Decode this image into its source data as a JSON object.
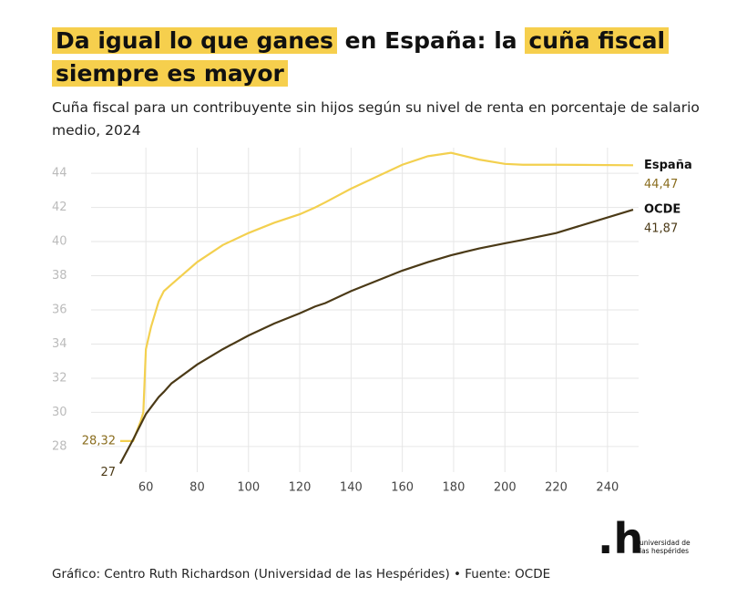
{
  "chart_data": {
    "type": "line",
    "title": [
      "Da igual lo que ganes",
      "en España: la",
      "cuña fiscal",
      "siempre es mayor"
    ],
    "subtitle": "Cuña fiscal para un contribuyente sin hijos según su nivel de renta en porcentaje de salario medio, 2024",
    "source": "Gráfico: Centro Ruth Richardson (Universidad de las Hespérides) • Fuente: OCDE",
    "logo": {
      "mark": ".h",
      "text": "universidad de las hespérides"
    },
    "x": [
      50,
      55,
      58,
      59,
      60,
      62,
      65,
      67,
      70,
      80,
      90,
      100,
      110,
      120,
      126,
      130,
      140,
      150,
      160,
      170,
      179,
      190,
      200,
      207,
      220,
      250
    ],
    "series": [
      {
        "name": "España",
        "color": "#f3d04f",
        "label_color": "#8a6d1e",
        "values": [
          28.32,
          28.32,
          29.5,
          30,
          33.7,
          35,
          36.5,
          37.1,
          37.5,
          38.8,
          39.8,
          40.5,
          41.1,
          41.6,
          42,
          42.3,
          43.1,
          43.8,
          44.5,
          45,
          45.2,
          44.8,
          44.55,
          44.5,
          44.5,
          44.47
        ],
        "value_labels": [
          "28,32",
          null,
          null,
          null,
          null,
          null,
          null,
          null,
          null,
          null,
          null,
          null,
          null,
          null,
          null,
          null,
          null,
          null,
          null,
          null,
          null,
          null,
          null,
          null,
          null,
          "44,47"
        ]
      },
      {
        "name": "OCDE",
        "color": "#4b3a17",
        "label_color": "#4b3a17",
        "values": [
          27,
          28.4,
          29.3,
          29.6,
          29.9,
          30.3,
          30.9,
          31.2,
          31.7,
          32.8,
          33.7,
          34.5,
          35.2,
          35.8,
          36.2,
          36.4,
          37.1,
          37.7,
          38.3,
          38.8,
          39.2,
          39.6,
          39.9,
          40.1,
          40.5,
          41.87
        ],
        "value_labels": [
          "27",
          null,
          null,
          null,
          null,
          null,
          null,
          null,
          null,
          null,
          null,
          null,
          null,
          null,
          null,
          null,
          null,
          null,
          null,
          null,
          null,
          null,
          null,
          null,
          null,
          "41,87"
        ]
      }
    ],
    "xlim": [
      50,
      250
    ],
    "ylim": [
      26.5,
      45.5
    ],
    "xticks": [
      60,
      80,
      100,
      120,
      140,
      160,
      180,
      200,
      220,
      240
    ],
    "yticks": [
      28,
      30,
      32,
      34,
      36,
      38,
      40,
      42,
      44
    ],
    "grid": true
  }
}
